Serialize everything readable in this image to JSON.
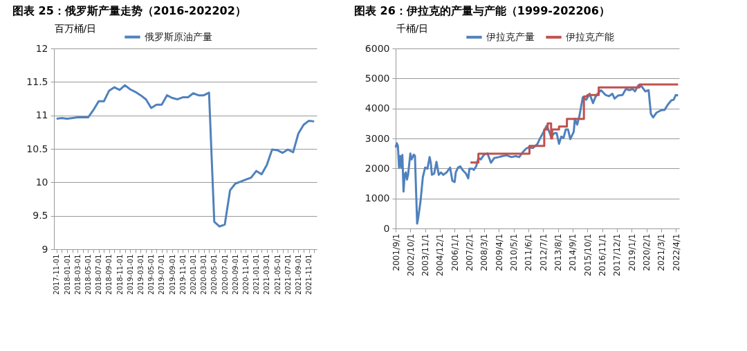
{
  "chart_data": [
    {
      "type": "line",
      "title": "图表 25：俄罗斯产量走势（2016-202202）",
      "ylabel": "百万桶/日",
      "categories": [
        "2017-11-01",
        null,
        "2018-01-01",
        null,
        "2018-03-01",
        null,
        "2018-05-01",
        null,
        "2018-07-01",
        null,
        "2018-09-01",
        null,
        "2018-11-01",
        null,
        "2019-01-01",
        null,
        "2019-03-01",
        null,
        "2019-05-01",
        null,
        "2019-07-01",
        null,
        "2019-09-01",
        null,
        "2019-11-01",
        null,
        "2020-01-01",
        null,
        "2020-03-01",
        null,
        "2020-05-01",
        null,
        "2020-07-01",
        null,
        "2020-09-01",
        null,
        "2020-11-01",
        null,
        "2021-01-01",
        null,
        "2021-03-01",
        null,
        "2021-05-01",
        null,
        "2021-07-01",
        null,
        "2021-09-01",
        null,
        "2021-11-01",
        null
      ],
      "series": [
        {
          "name": "俄罗斯原油产量",
          "color": "#4f81bd",
          "values": [
            10.95,
            10.96,
            10.95,
            10.96,
            10.97,
            10.97,
            10.97,
            11.08,
            11.21,
            11.21,
            11.37,
            11.42,
            11.38,
            11.45,
            11.39,
            11.35,
            11.3,
            11.24,
            11.11,
            11.16,
            11.16,
            11.3,
            11.26,
            11.24,
            11.27,
            11.27,
            11.33,
            11.3,
            11.3,
            11.34,
            9.41,
            9.34,
            9.37,
            9.88,
            9.98,
            10.01,
            10.04,
            10.07,
            10.17,
            10.12,
            10.26,
            10.49,
            10.48,
            10.44,
            10.49,
            10.45,
            10.73,
            10.86,
            10.92,
            10.91
          ]
        }
      ],
      "ylim": [
        9,
        12
      ],
      "yticks": [
        9,
        9.5,
        10,
        10.5,
        11,
        11.5,
        12
      ],
      "grid": "y",
      "legend": "top"
    },
    {
      "type": "line",
      "title": "图表 26：伊拉克的产量与产能（1999-202206）",
      "ylabel": "千桶/日",
      "xlim": [
        "2001-09",
        "2022-07"
      ],
      "xticks": [
        {
          "value": "2001-09",
          "label": "2001/9/1"
        },
        {
          "value": "2002-10",
          "label": "2002/10/1"
        },
        {
          "value": "2003-11",
          "label": "2003/11/1"
        },
        {
          "value": "2004-12",
          "label": "2004/12/1"
        },
        {
          "value": "2006-01",
          "label": "2006/1/1"
        },
        {
          "value": "2007-02",
          "label": "2007/2/1"
        },
        {
          "value": "2008-03",
          "label": "2008/3/1"
        },
        {
          "value": "2009-04",
          "label": "2009/4/1"
        },
        {
          "value": "2010-05",
          "label": "2010/5/1"
        },
        {
          "value": "2011-06",
          "label": "2011/6/1"
        },
        {
          "value": "2012-07",
          "label": "2012/7/1"
        },
        {
          "value": "2013-08",
          "label": "2013/8/1"
        },
        {
          "value": "2014-09",
          "label": "2014/9/1"
        },
        {
          "value": "2015-10",
          "label": "2015/10/1"
        },
        {
          "value": "2016-11",
          "label": "2016/11/1"
        },
        {
          "value": "2017-12",
          "label": "2017/12/1"
        },
        {
          "value": "2019-01",
          "label": "2019/1/1"
        },
        {
          "value": "2020-02",
          "label": "2020/2/1"
        },
        {
          "value": "2021-03",
          "label": "2021/3/1"
        },
        {
          "value": "2022-04",
          "label": "2022/4/1"
        }
      ],
      "series": [
        {
          "name": "伊拉克产量",
          "color": "#4f81bd",
          "x": [
            "2001-09",
            "2001-10",
            "2001-11",
            "2001-12",
            "2002-01",
            "2002-02",
            "2002-03",
            "2002-04",
            "2002-05",
            "2002-06",
            "2002-07",
            "2002-08",
            "2002-10",
            "2002-11",
            "2003-01",
            "2003-02",
            "2003-04",
            "2003-05",
            "2003-07",
            "2003-09",
            "2003-11",
            "2004-01",
            "2004-03",
            "2004-04",
            "2004-05",
            "2004-07",
            "2004-09",
            "2004-11",
            "2005-01",
            "2005-03",
            "2005-06",
            "2005-09",
            "2005-11",
            "2006-01",
            "2006-02",
            "2006-04",
            "2006-06",
            "2006-08",
            "2006-11",
            "2007-01",
            "2007-02",
            "2007-05",
            "2007-06",
            "2007-08",
            "2007-10",
            "2007-12",
            "2008-03",
            "2008-06",
            "2008-09",
            "2008-12",
            "2009-04",
            "2009-07",
            "2009-11",
            "2010-03",
            "2010-07",
            "2010-10",
            "2011-01",
            "2011-04",
            "2011-06",
            "2011-10",
            "2012-02",
            "2012-04",
            "2012-08",
            "2012-10",
            "2012-12",
            "2013-02",
            "2013-05",
            "2013-07",
            "2013-09",
            "2013-11",
            "2014-01",
            "2014-03",
            "2014-05",
            "2014-07",
            "2014-10",
            "2014-11",
            "2015-01",
            "2015-03",
            "2015-06",
            "2015-09",
            "2015-12",
            "2016-03",
            "2016-05",
            "2016-07",
            "2016-10",
            "2017-02",
            "2017-05",
            "2017-08",
            "2017-10",
            "2018-01",
            "2018-05",
            "2018-08",
            "2018-11",
            "2019-02",
            "2019-04",
            "2019-07",
            "2019-10",
            "2020-01",
            "2020-04",
            "2020-06",
            "2020-08",
            "2020-11",
            "2021-03",
            "2021-06",
            "2021-09",
            "2021-12",
            "2022-02",
            "2022-04",
            "2022-06"
          ],
          "values": [
            2700,
            2840,
            2750,
            2030,
            2420,
            2030,
            2450,
            1230,
            1790,
            1870,
            1630,
            1790,
            2500,
            2300,
            2460,
            2420,
            160,
            360,
            910,
            1710,
            2030,
            1990,
            2380,
            2190,
            1790,
            1830,
            2220,
            1790,
            1870,
            1790,
            1870,
            2030,
            1590,
            1550,
            1870,
            2030,
            2070,
            1950,
            1830,
            1670,
            1990,
            1990,
            1950,
            2070,
            2350,
            2300,
            2460,
            2500,
            2190,
            2350,
            2380,
            2410,
            2440,
            2380,
            2410,
            2380,
            2540,
            2660,
            2700,
            2680,
            2820,
            2980,
            3260,
            3420,
            3260,
            3060,
            3180,
            3180,
            2820,
            3060,
            3020,
            3300,
            3300,
            2980,
            3220,
            3660,
            3460,
            3740,
            4370,
            4290,
            4490,
            4180,
            4370,
            4490,
            4610,
            4450,
            4410,
            4490,
            4330,
            4430,
            4450,
            4650,
            4610,
            4650,
            4570,
            4770,
            4730,
            4570,
            4610,
            3820,
            3700,
            3860,
            3940,
            3950,
            4130,
            4270,
            4290,
            4450,
            4430
          ]
        },
        {
          "name": "伊拉克产能",
          "color": "#c0504d",
          "type": "step",
          "x": [
            "2007-03",
            "2007-09",
            "2007-10",
            "2011-07",
            "2012-08",
            "2012-11",
            "2013-02",
            "2013-03",
            "2013-09",
            "2014-04",
            "2015-07",
            "2015-10",
            "2016-08",
            "2019-08",
            "2022-06"
          ],
          "values": [
            2200,
            2200,
            2490,
            2750,
            3300,
            3500,
            3000,
            3300,
            3400,
            3650,
            4400,
            4450,
            4700,
            4800,
            4800
          ]
        }
      ],
      "ylim": [
        0,
        6000
      ],
      "yticks": [
        0,
        1000,
        2000,
        3000,
        4000,
        5000,
        6000
      ],
      "grid": "y",
      "legend": "top"
    }
  ]
}
